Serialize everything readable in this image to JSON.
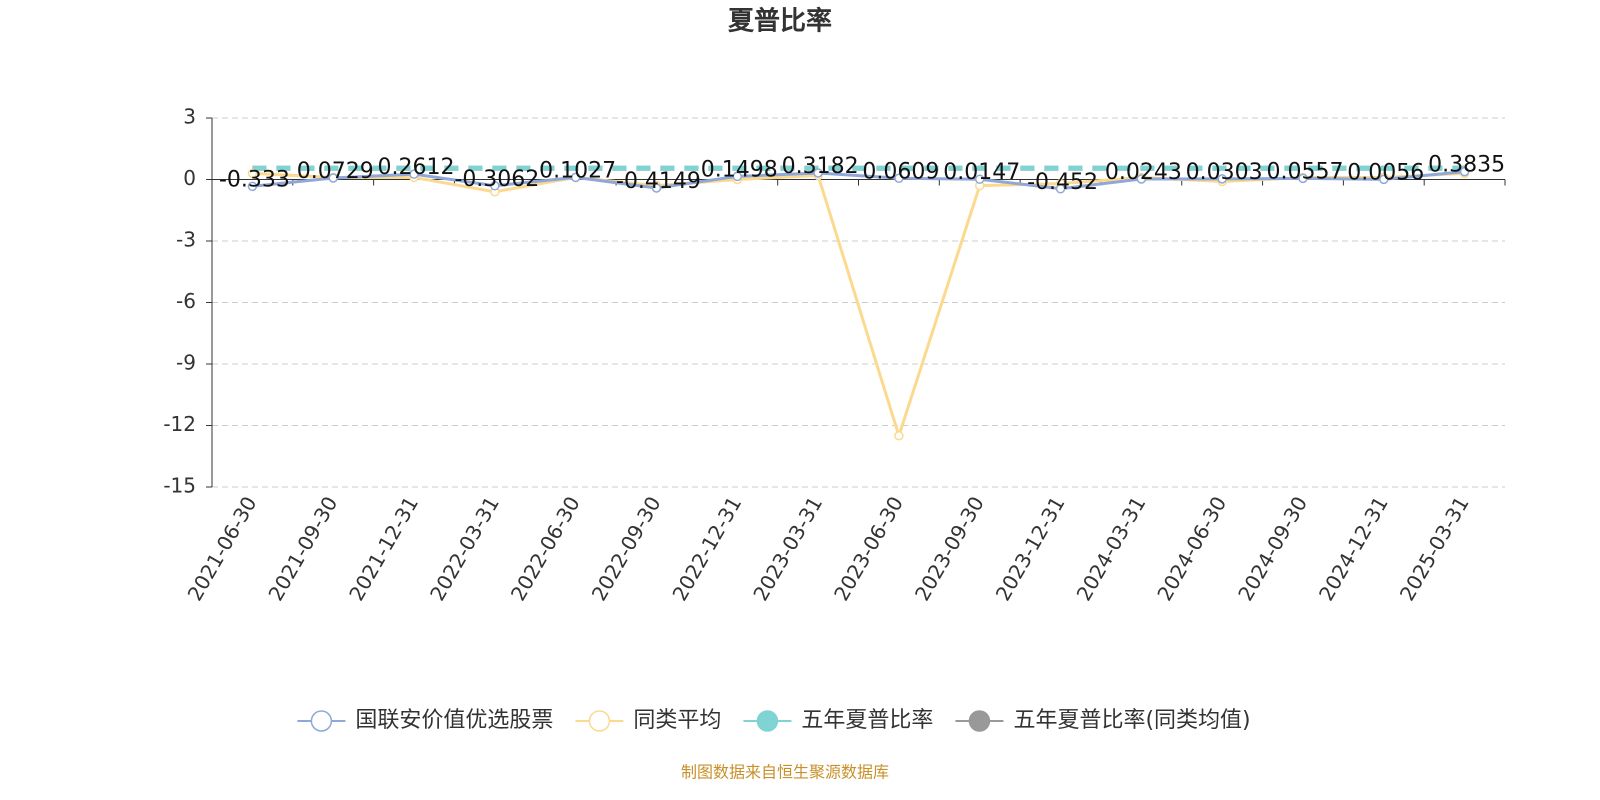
{
  "chart_data": {
    "type": "line",
    "title": "夏普比率",
    "categories": [
      "2021-06-30",
      "2021-09-30",
      "2021-12-31",
      "2022-03-31",
      "2022-06-30",
      "2022-09-30",
      "2022-12-31",
      "2023-03-31",
      "2023-06-30",
      "2023-09-30",
      "2023-12-31",
      "2024-03-31",
      "2024-06-30",
      "2024-09-30",
      "2024-12-31",
      "2025-03-31"
    ],
    "series": [
      {
        "name": "国联安价值优选股票",
        "color": "#8fa8d8",
        "style": "solid",
        "labels": true,
        "values": [
          -0.333,
          0.0729,
          0.2612,
          -0.3062,
          0.1027,
          -0.4149,
          0.1498,
          0.3182,
          0.0609,
          0.0147,
          -0.452,
          0.0243,
          0.0303,
          0.0557,
          0.0056,
          0.3835
        ]
      },
      {
        "name": "同类平均",
        "color": "#fcd98f",
        "style": "solid",
        "labels": false,
        "values": [
          0.3,
          0.1,
          0.1,
          -0.6,
          0.1,
          -0.3,
          0.0,
          0.2,
          -12.5,
          -0.3,
          -0.2,
          0.1,
          -0.1,
          0.1,
          0.1,
          0.3
        ]
      },
      {
        "name": "五年夏普比率(同类均值)",
        "color": "#999999",
        "style": "dashed",
        "labels": false,
        "values": [
          0.55,
          0.55,
          0.55,
          0.55,
          0.55,
          0.55,
          0.55,
          0.55,
          0.55,
          0.55,
          0.55,
          0.55,
          0.55,
          0.55,
          0.55,
          0.55
        ]
      },
      {
        "name": "五年夏普比率",
        "color": "#7fd3d3",
        "style": "dashed",
        "labels": false,
        "values": [
          0.55,
          0.55,
          0.55,
          0.55,
          0.55,
          0.55,
          0.55,
          0.55,
          0.55,
          0.55,
          0.55,
          0.55,
          0.55,
          0.55,
          0.55,
          0.55
        ]
      }
    ],
    "ylim": [
      -15,
      3
    ],
    "yticks": [
      -15,
      -12,
      -9,
      -6,
      -3,
      0,
      3
    ],
    "grid": true,
    "source": "制图数据来自恒生聚源数据库"
  }
}
